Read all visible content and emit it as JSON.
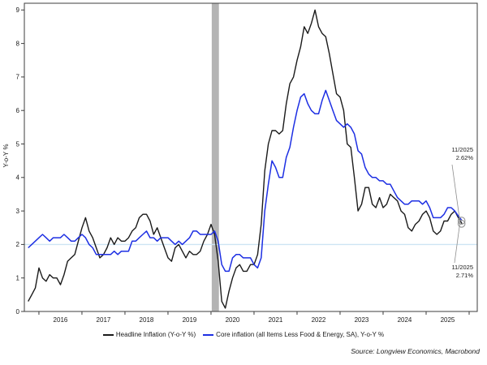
{
  "chart_data": {
    "type": "line",
    "title": "",
    "xlabel": "",
    "ylabel": "Y-o-Y %",
    "ylim": [
      0,
      9.2
    ],
    "yticks": [
      0,
      1,
      2,
      3,
      4,
      5,
      6,
      7,
      8,
      9
    ],
    "x_start": "2015-10",
    "x_end": "2025-11",
    "frequency": "monthly",
    "x_year_labels": [
      "2016",
      "2017",
      "2018",
      "2019",
      "2020",
      "2021",
      "2022",
      "2023",
      "2024",
      "2025"
    ],
    "grid": false,
    "legend_position": "bottom",
    "reference_line": {
      "y": 2,
      "color": "#cde5f3"
    },
    "band": {
      "from": "2020-02",
      "to": "2020-04",
      "color": "#b4b4b4"
    },
    "series": [
      {
        "name": "Headline Inflation (Y-o-Y %)",
        "color": "#1a1a1a",
        "values": [
          0.3,
          0.5,
          0.7,
          1.3,
          1.0,
          0.9,
          1.1,
          1.0,
          1.0,
          0.8,
          1.1,
          1.5,
          1.6,
          1.7,
          2.1,
          2.5,
          2.8,
          2.4,
          2.2,
          1.9,
          1.6,
          1.7,
          1.9,
          2.2,
          2.0,
          2.2,
          2.1,
          2.1,
          2.2,
          2.4,
          2.5,
          2.8,
          2.9,
          2.9,
          2.7,
          2.3,
          2.5,
          2.2,
          1.9,
          1.6,
          1.5,
          1.9,
          2.0,
          1.8,
          1.6,
          1.8,
          1.7,
          1.7,
          1.8,
          2.1,
          2.3,
          2.6,
          2.3,
          1.5,
          0.3,
          0.1,
          0.6,
          1.0,
          1.3,
          1.4,
          1.2,
          1.2,
          1.4,
          1.4,
          1.7,
          2.6,
          4.2,
          5.0,
          5.4,
          5.4,
          5.3,
          5.4,
          6.2,
          6.8,
          7.0,
          7.5,
          7.9,
          8.5,
          8.3,
          8.6,
          9.0,
          8.5,
          8.3,
          8.2,
          7.7,
          7.1,
          6.5,
          6.4,
          6.0,
          5.0,
          4.9,
          4.0,
          3.0,
          3.2,
          3.7,
          3.7,
          3.2,
          3.1,
          3.4,
          3.1,
          3.2,
          3.5,
          3.4,
          3.3,
          3.0,
          2.9,
          2.5,
          2.4,
          2.6,
          2.7,
          2.9,
          3.0,
          2.8,
          2.4,
          2.3,
          2.4,
          2.7,
          2.7,
          2.9,
          3.0,
          2.8,
          2.62
        ]
      },
      {
        "name": "Core inflation (all Items Less Food & Energy, SA), Y-o-Y %",
        "color": "#1d2fe3",
        "values": [
          1.9,
          2.0,
          2.1,
          2.2,
          2.3,
          2.2,
          2.1,
          2.2,
          2.2,
          2.2,
          2.3,
          2.2,
          2.1,
          2.1,
          2.2,
          2.3,
          2.2,
          2.0,
          1.9,
          1.7,
          1.7,
          1.7,
          1.7,
          1.7,
          1.8,
          1.7,
          1.8,
          1.8,
          1.8,
          2.1,
          2.1,
          2.2,
          2.3,
          2.4,
          2.2,
          2.2,
          2.1,
          2.2,
          2.2,
          2.2,
          2.1,
          2.0,
          2.1,
          2.0,
          2.1,
          2.2,
          2.4,
          2.4,
          2.3,
          2.3,
          2.3,
          2.3,
          2.4,
          2.1,
          1.4,
          1.2,
          1.2,
          1.6,
          1.7,
          1.7,
          1.6,
          1.6,
          1.6,
          1.4,
          1.3,
          1.6,
          3.0,
          3.8,
          4.5,
          4.3,
          4.0,
          4.0,
          4.6,
          4.9,
          5.5,
          6.0,
          6.4,
          6.5,
          6.2,
          6.0,
          5.9,
          5.9,
          6.3,
          6.6,
          6.3,
          6.0,
          5.7,
          5.6,
          5.5,
          5.6,
          5.5,
          5.3,
          4.8,
          4.7,
          4.3,
          4.1,
          4.0,
          4.0,
          3.9,
          3.9,
          3.8,
          3.8,
          3.6,
          3.4,
          3.3,
          3.2,
          3.2,
          3.3,
          3.3,
          3.3,
          3.2,
          3.3,
          3.1,
          2.8,
          2.8,
          2.8,
          2.9,
          3.1,
          3.1,
          3.0,
          2.85,
          2.71
        ]
      }
    ],
    "annotations": [
      {
        "date_label": "11/2025",
        "value_label": "2.62%",
        "value": 2.62,
        "series": "Headline Inflation (Y-o-Y %)"
      },
      {
        "date_label": "11/2025",
        "value_label": "2.71%",
        "value": 2.71,
        "series": "Core inflation (all Items Less Food & Energy, SA), Y-o-Y %"
      }
    ],
    "endpoint_marker": {
      "shape": "circle",
      "color": "#8c8c8c"
    },
    "source": "Source: Longview Economics, Macrobond"
  }
}
